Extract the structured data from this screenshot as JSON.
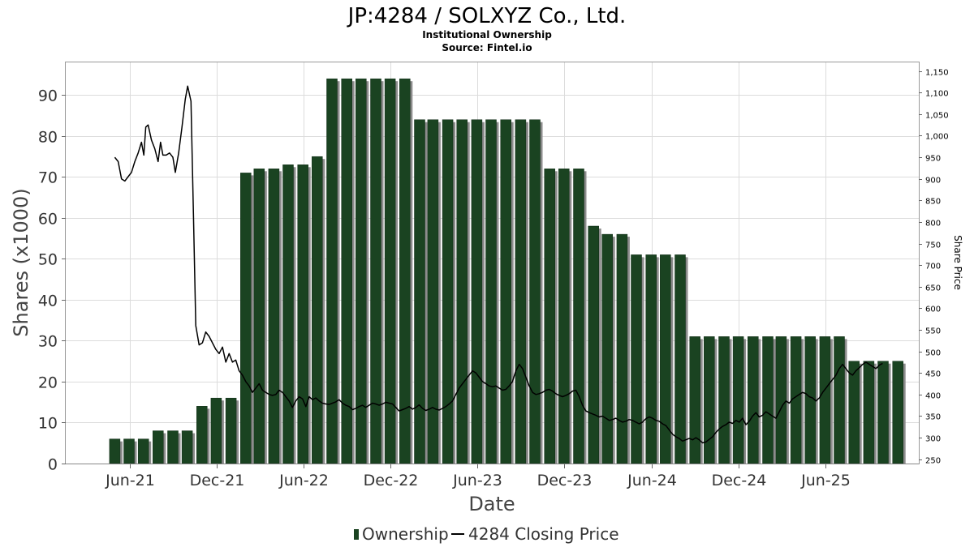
{
  "chart_data": {
    "type": "bar",
    "title": "JP:4284 / SOLXYZ Co., Ltd.",
    "subtitle": "Institutional Ownership",
    "source": "Source: Fintel.io",
    "xlabel": "Date",
    "ylabel": "Shares (x1000)",
    "ylabel_right": "Share Price",
    "ylim": [
      0,
      98
    ],
    "ylim_right": [
      240,
      1170
    ],
    "yticks": [
      0,
      10,
      20,
      30,
      40,
      50,
      60,
      70,
      80,
      90
    ],
    "yticks_right": [
      250,
      300,
      350,
      400,
      450,
      500,
      550,
      600,
      650,
      700,
      750,
      800,
      850,
      900,
      950,
      1000,
      1050,
      1100,
      1150
    ],
    "yticks_right_labels": [
      "250",
      "300",
      "350",
      "400",
      "450",
      "500",
      "550",
      "600",
      "650",
      "700",
      "750",
      "800",
      "850",
      "900",
      "950",
      "1,000",
      "1,050",
      "1,100",
      "1,150"
    ],
    "xlim": [
      "2021-01-18",
      "2025-12-14"
    ],
    "xticks": [
      {
        "date": "2021-06-01",
        "label": "Jun-21"
      },
      {
        "date": "2021-12-01",
        "label": "Dec-21"
      },
      {
        "date": "2022-06-01",
        "label": "Jun-22"
      },
      {
        "date": "2022-12-01",
        "label": "Dec-22"
      },
      {
        "date": "2023-06-01",
        "label": "Jun-23"
      },
      {
        "date": "2023-12-01",
        "label": "Dec-23"
      },
      {
        "date": "2024-06-01",
        "label": "Jun-24"
      },
      {
        "date": "2024-12-01",
        "label": "Dec-24"
      },
      {
        "date": "2025-06-01",
        "label": "Jun-25"
      }
    ],
    "grid": true,
    "legend_position": "bottom",
    "series": [
      {
        "name": "Ownership",
        "type": "bar",
        "axis": "left",
        "color": "#1a4321",
        "shadow_color": "#8c8c8c",
        "dates": [
          "2021-05-01",
          "2021-05-31",
          "2021-06-30",
          "2021-07-31",
          "2021-08-31",
          "2021-09-30",
          "2021-10-31",
          "2021-11-30",
          "2021-12-31",
          "2022-01-31",
          "2022-02-28",
          "2022-03-31",
          "2022-04-30",
          "2022-05-31",
          "2022-06-30",
          "2022-07-31",
          "2022-08-31",
          "2022-09-30",
          "2022-10-31",
          "2022-11-30",
          "2022-12-31",
          "2023-01-31",
          "2023-02-28",
          "2023-03-31",
          "2023-04-30",
          "2023-05-31",
          "2023-06-30",
          "2023-07-31",
          "2023-08-31",
          "2023-09-30",
          "2023-10-31",
          "2023-11-30",
          "2023-12-31",
          "2024-01-31",
          "2024-02-29",
          "2024-03-31",
          "2024-04-30",
          "2024-05-31",
          "2024-06-30",
          "2024-07-31",
          "2024-08-31",
          "2024-09-30",
          "2024-10-31",
          "2024-11-30",
          "2024-12-31",
          "2025-01-31",
          "2025-02-28",
          "2025-03-31",
          "2025-04-30",
          "2025-05-31",
          "2025-06-30",
          "2025-07-31",
          "2025-08-31",
          "2025-09-30",
          "2025-10-31"
        ],
        "values": [
          6,
          6,
          6,
          8,
          8,
          8,
          14,
          16,
          16,
          71,
          72,
          72,
          73,
          73,
          75,
          94,
          94,
          94,
          94,
          94,
          94,
          84,
          84,
          84,
          84,
          84,
          84,
          84,
          84,
          84,
          72,
          72,
          72,
          58,
          56,
          56,
          51,
          51,
          51,
          51,
          31,
          31,
          31,
          31,
          31,
          31,
          31,
          31,
          31,
          31,
          31,
          25,
          25,
          25,
          25
        ]
      },
      {
        "name": "4284 Closing Price",
        "type": "line",
        "axis": "right",
        "color": "#000000",
        "points": [
          [
            "2021-05-01",
            950
          ],
          [
            "2021-05-08",
            940
          ],
          [
            "2021-05-15",
            900
          ],
          [
            "2021-05-22",
            895
          ],
          [
            "2021-05-29",
            905
          ],
          [
            "2021-06-05",
            915
          ],
          [
            "2021-06-12",
            940
          ],
          [
            "2021-06-19",
            960
          ],
          [
            "2021-06-26",
            985
          ],
          [
            "2021-07-01",
            955
          ],
          [
            "2021-07-05",
            1020
          ],
          [
            "2021-07-10",
            1025
          ],
          [
            "2021-07-17",
            990
          ],
          [
            "2021-07-24",
            970
          ],
          [
            "2021-07-31",
            940
          ],
          [
            "2021-08-05",
            985
          ],
          [
            "2021-08-10",
            955
          ],
          [
            "2021-08-17",
            955
          ],
          [
            "2021-08-24",
            960
          ],
          [
            "2021-08-31",
            950
          ],
          [
            "2021-09-05",
            915
          ],
          [
            "2021-09-12",
            960
          ],
          [
            "2021-09-19",
            1020
          ],
          [
            "2021-09-26",
            1085
          ],
          [
            "2021-10-01",
            1115
          ],
          [
            "2021-10-08",
            1080
          ],
          [
            "2021-10-13",
            820
          ],
          [
            "2021-10-18",
            560
          ],
          [
            "2021-10-25",
            515
          ],
          [
            "2021-11-01",
            520
          ],
          [
            "2021-11-08",
            545
          ],
          [
            "2021-11-15",
            535
          ],
          [
            "2021-11-22",
            520
          ],
          [
            "2021-11-29",
            505
          ],
          [
            "2021-12-06",
            495
          ],
          [
            "2021-12-13",
            510
          ],
          [
            "2021-12-20",
            475
          ],
          [
            "2021-12-27",
            495
          ],
          [
            "2022-01-03",
            475
          ],
          [
            "2022-01-10",
            480
          ],
          [
            "2022-01-17",
            455
          ],
          [
            "2022-01-24",
            445
          ],
          [
            "2022-01-31",
            430
          ],
          [
            "2022-02-07",
            420
          ],
          [
            "2022-02-14",
            405
          ],
          [
            "2022-02-21",
            415
          ],
          [
            "2022-02-28",
            425
          ],
          [
            "2022-03-07",
            410
          ],
          [
            "2022-03-14",
            405
          ],
          [
            "2022-03-21",
            400
          ],
          [
            "2022-03-28",
            398
          ],
          [
            "2022-04-04",
            400
          ],
          [
            "2022-04-11",
            410
          ],
          [
            "2022-04-18",
            405
          ],
          [
            "2022-04-25",
            395
          ],
          [
            "2022-05-02",
            385
          ],
          [
            "2022-05-09",
            370
          ],
          [
            "2022-05-16",
            385
          ],
          [
            "2022-05-23",
            395
          ],
          [
            "2022-05-30",
            390
          ],
          [
            "2022-06-06",
            372
          ],
          [
            "2022-06-13",
            395
          ],
          [
            "2022-06-20",
            388
          ],
          [
            "2022-06-27",
            392
          ],
          [
            "2022-07-04",
            385
          ],
          [
            "2022-07-11",
            380
          ],
          [
            "2022-07-18",
            378
          ],
          [
            "2022-07-25",
            377
          ],
          [
            "2022-08-01",
            380
          ],
          [
            "2022-08-08",
            383
          ],
          [
            "2022-08-15",
            388
          ],
          [
            "2022-08-22",
            380
          ],
          [
            "2022-08-29",
            375
          ],
          [
            "2022-09-05",
            372
          ],
          [
            "2022-09-12",
            365
          ],
          [
            "2022-09-19",
            368
          ],
          [
            "2022-09-26",
            372
          ],
          [
            "2022-10-03",
            375
          ],
          [
            "2022-10-10",
            370
          ],
          [
            "2022-10-17",
            375
          ],
          [
            "2022-10-24",
            380
          ],
          [
            "2022-10-31",
            378
          ],
          [
            "2022-11-07",
            375
          ],
          [
            "2022-11-14",
            378
          ],
          [
            "2022-11-21",
            382
          ],
          [
            "2022-11-28",
            380
          ],
          [
            "2022-12-05",
            378
          ],
          [
            "2022-12-12",
            370
          ],
          [
            "2022-12-19",
            362
          ],
          [
            "2022-12-26",
            365
          ],
          [
            "2023-01-02",
            368
          ],
          [
            "2023-01-09",
            372
          ],
          [
            "2023-01-16",
            366
          ],
          [
            "2023-01-23",
            370
          ],
          [
            "2023-01-30",
            376
          ],
          [
            "2023-02-06",
            368
          ],
          [
            "2023-02-13",
            363
          ],
          [
            "2023-02-20",
            366
          ],
          [
            "2023-02-27",
            370
          ],
          [
            "2023-03-06",
            366
          ],
          [
            "2023-03-13",
            364
          ],
          [
            "2023-03-20",
            368
          ],
          [
            "2023-03-27",
            372
          ],
          [
            "2023-04-03",
            378
          ],
          [
            "2023-04-10",
            385
          ],
          [
            "2023-04-17",
            400
          ],
          [
            "2023-04-24",
            415
          ],
          [
            "2023-05-01",
            425
          ],
          [
            "2023-05-08",
            435
          ],
          [
            "2023-05-15",
            445
          ],
          [
            "2023-05-22",
            455
          ],
          [
            "2023-05-29",
            450
          ],
          [
            "2023-06-05",
            440
          ],
          [
            "2023-06-12",
            430
          ],
          [
            "2023-06-19",
            425
          ],
          [
            "2023-06-26",
            420
          ],
          [
            "2023-07-03",
            418
          ],
          [
            "2023-07-10",
            420
          ],
          [
            "2023-07-17",
            415
          ],
          [
            "2023-07-24",
            410
          ],
          [
            "2023-07-31",
            412
          ],
          [
            "2023-08-07",
            420
          ],
          [
            "2023-08-14",
            430
          ],
          [
            "2023-08-21",
            455
          ],
          [
            "2023-08-28",
            470
          ],
          [
            "2023-09-04",
            460
          ],
          [
            "2023-09-11",
            440
          ],
          [
            "2023-09-18",
            420
          ],
          [
            "2023-09-25",
            405
          ],
          [
            "2023-10-02",
            400
          ],
          [
            "2023-10-09",
            402
          ],
          [
            "2023-10-16",
            405
          ],
          [
            "2023-10-23",
            410
          ],
          [
            "2023-10-30",
            412
          ],
          [
            "2023-11-06",
            408
          ],
          [
            "2023-11-13",
            402
          ],
          [
            "2023-11-20",
            398
          ],
          [
            "2023-11-27",
            395
          ],
          [
            "2023-12-04",
            398
          ],
          [
            "2023-12-11",
            402
          ],
          [
            "2023-12-18",
            408
          ],
          [
            "2023-12-25",
            410
          ],
          [
            "2024-01-01",
            395
          ],
          [
            "2024-01-08",
            375
          ],
          [
            "2024-01-15",
            362
          ],
          [
            "2024-01-22",
            358
          ],
          [
            "2024-01-29",
            355
          ],
          [
            "2024-02-05",
            352
          ],
          [
            "2024-02-12",
            348
          ],
          [
            "2024-02-19",
            350
          ],
          [
            "2024-02-26",
            345
          ],
          [
            "2024-03-04",
            340
          ],
          [
            "2024-03-11",
            342
          ],
          [
            "2024-03-18",
            345
          ],
          [
            "2024-03-25",
            340
          ],
          [
            "2024-04-01",
            336
          ],
          [
            "2024-04-08",
            338
          ],
          [
            "2024-04-15",
            342
          ],
          [
            "2024-04-22",
            340
          ],
          [
            "2024-04-29",
            336
          ],
          [
            "2024-05-06",
            332
          ],
          [
            "2024-05-13",
            336
          ],
          [
            "2024-05-20",
            344
          ],
          [
            "2024-05-27",
            348
          ],
          [
            "2024-06-03",
            345
          ],
          [
            "2024-06-10",
            340
          ],
          [
            "2024-06-17",
            338
          ],
          [
            "2024-06-24",
            332
          ],
          [
            "2024-07-01",
            328
          ],
          [
            "2024-07-08",
            318
          ],
          [
            "2024-07-15",
            308
          ],
          [
            "2024-07-22",
            302
          ],
          [
            "2024-07-29",
            298
          ],
          [
            "2024-08-05",
            292
          ],
          [
            "2024-08-12",
            295
          ],
          [
            "2024-08-19",
            298
          ],
          [
            "2024-08-26",
            295
          ],
          [
            "2024-09-02",
            300
          ],
          [
            "2024-09-09",
            295
          ],
          [
            "2024-09-16",
            288
          ],
          [
            "2024-09-23",
            290
          ],
          [
            "2024-09-30",
            296
          ],
          [
            "2024-10-07",
            302
          ],
          [
            "2024-10-14",
            312
          ],
          [
            "2024-10-21",
            320
          ],
          [
            "2024-10-28",
            326
          ],
          [
            "2024-11-04",
            330
          ],
          [
            "2024-11-11",
            336
          ],
          [
            "2024-11-18",
            333
          ],
          [
            "2024-11-25",
            340
          ],
          [
            "2024-12-02",
            336
          ],
          [
            "2024-12-09",
            345
          ],
          [
            "2024-12-16",
            330
          ],
          [
            "2024-12-23",
            338
          ],
          [
            "2024-12-30",
            350
          ],
          [
            "2025-01-06",
            358
          ],
          [
            "2025-01-13",
            348
          ],
          [
            "2025-01-20",
            352
          ],
          [
            "2025-01-27",
            360
          ],
          [
            "2025-02-03",
            355
          ],
          [
            "2025-02-10",
            350
          ],
          [
            "2025-02-17",
            345
          ],
          [
            "2025-02-24",
            360
          ],
          [
            "2025-03-03",
            375
          ],
          [
            "2025-03-10",
            385
          ],
          [
            "2025-03-17",
            380
          ],
          [
            "2025-03-24",
            390
          ],
          [
            "2025-03-31",
            395
          ],
          [
            "2025-04-07",
            400
          ],
          [
            "2025-04-14",
            405
          ],
          [
            "2025-04-21",
            402
          ],
          [
            "2025-04-28",
            395
          ],
          [
            "2025-05-05",
            392
          ],
          [
            "2025-05-12",
            385
          ],
          [
            "2025-05-19",
            392
          ],
          [
            "2025-05-26",
            405
          ],
          [
            "2025-06-02",
            415
          ],
          [
            "2025-06-09",
            425
          ],
          [
            "2025-06-16",
            435
          ],
          [
            "2025-06-23",
            445
          ],
          [
            "2025-06-30",
            460
          ],
          [
            "2025-07-07",
            470
          ],
          [
            "2025-07-14",
            460
          ],
          [
            "2025-07-21",
            450
          ],
          [
            "2025-07-28",
            445
          ],
          [
            "2025-08-04",
            455
          ],
          [
            "2025-08-11",
            462
          ],
          [
            "2025-08-18",
            470
          ],
          [
            "2025-08-25",
            475
          ],
          [
            "2025-09-01",
            470
          ],
          [
            "2025-09-08",
            465
          ],
          [
            "2025-09-15",
            460
          ],
          [
            "2025-09-22",
            468
          ],
          [
            "2025-09-29",
            472
          ]
        ]
      }
    ]
  }
}
